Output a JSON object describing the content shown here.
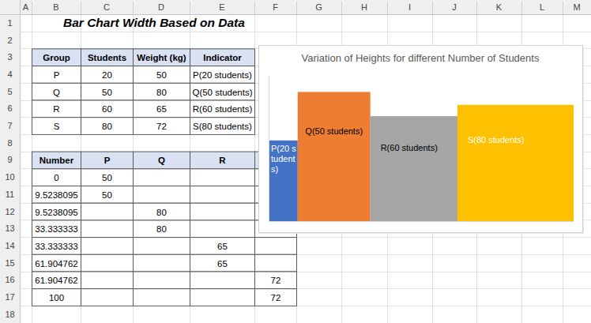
{
  "sheet": {
    "title": "Bar Chart Width Based on Data",
    "columns": [
      "A",
      "B",
      "C",
      "D",
      "E",
      "F",
      "G",
      "H",
      "I",
      "J",
      "K",
      "L",
      "M"
    ],
    "row_numbers": [
      1,
      2,
      3,
      4,
      5,
      6,
      7,
      8,
      9,
      10,
      11,
      12,
      13,
      14,
      15,
      16,
      17,
      18
    ],
    "table1": {
      "header": [
        "Group",
        "Students",
        "Weight (kg)",
        "Indicator"
      ],
      "rows": [
        [
          "P",
          20,
          50,
          "P(20 students)"
        ],
        [
          "Q",
          50,
          80,
          "Q(50 students)"
        ],
        [
          "R",
          60,
          65,
          "R(60 students)"
        ],
        [
          "S",
          80,
          72,
          "S(80 students)"
        ]
      ]
    },
    "table2": {
      "header": [
        "Number",
        "P",
        "Q",
        "R",
        null
      ],
      "rows": [
        [
          0,
          50,
          null,
          null,
          null
        ],
        [
          9.5238095,
          50,
          null,
          null,
          null
        ],
        [
          9.5238095,
          null,
          80,
          null,
          null
        ],
        [
          33.333333,
          null,
          80,
          null,
          null
        ],
        [
          33.333333,
          null,
          null,
          65,
          null
        ],
        [
          61.904762,
          null,
          null,
          65,
          null
        ],
        [
          61.904762,
          null,
          null,
          null,
          72
        ],
        [
          100,
          null,
          null,
          null,
          72
        ]
      ]
    }
  },
  "chart_data": {
    "type": "bar",
    "title": "Variation of Heights for different Number of Students",
    "categories": [
      "P(20 students)",
      "Q(50 students)",
      "R(60 students)",
      "S(80 students)"
    ],
    "bins": [
      0,
      9.5238095,
      33.333333,
      61.904762,
      100
    ],
    "values": [
      50,
      80,
      65,
      72
    ],
    "colors": [
      "#4472c4",
      "#ed7d31",
      "#a5a5a5",
      "#ffc000"
    ],
    "xlim": [
      0,
      100
    ],
    "ylim": [
      0,
      90
    ],
    "tick_labels": false,
    "grid": false
  }
}
